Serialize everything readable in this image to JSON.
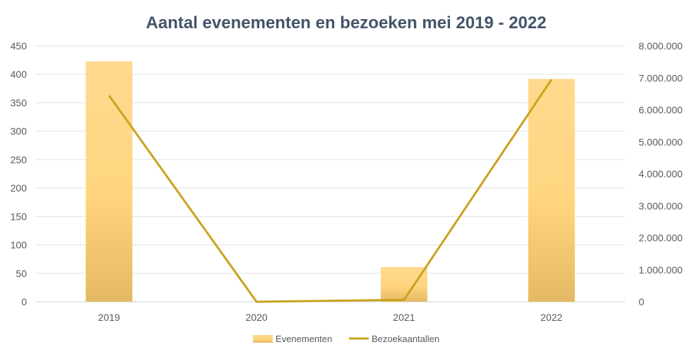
{
  "chart_data": {
    "type": "bar+line",
    "title": "Aantal evenementen en bezoeken mei 2019 - 2022",
    "categories": [
      "2019",
      "2020",
      "2021",
      "2022"
    ],
    "series": [
      {
        "name": "Evenementen",
        "type": "bar",
        "axis": "left",
        "values": [
          423,
          0,
          61,
          392
        ]
      },
      {
        "name": "Bezoekaantallen",
        "type": "line",
        "axis": "right",
        "values": [
          6450000,
          0,
          60000,
          6950000
        ]
      }
    ],
    "y_left": {
      "ylim": [
        0,
        450
      ],
      "ticks": [
        "0",
        "50",
        "100",
        "150",
        "200",
        "250",
        "300",
        "350",
        "400",
        "450"
      ]
    },
    "y_right": {
      "ylim": [
        0,
        8000000
      ],
      "ticks": [
        "0",
        "1.000.000",
        "2.000.000",
        "3.000.000",
        "4.000.000",
        "5.000.000",
        "6.000.000",
        "7.000.000",
        "8.000.000"
      ]
    },
    "grid": true,
    "legend_position": "bottom",
    "colors": {
      "bar_top": "#ffd98e",
      "bar_bottom": "#e3b964",
      "line": "#c9a31f",
      "title": "#44546a",
      "grid": "#e3e3e3",
      "axis_text": "#595959"
    }
  }
}
